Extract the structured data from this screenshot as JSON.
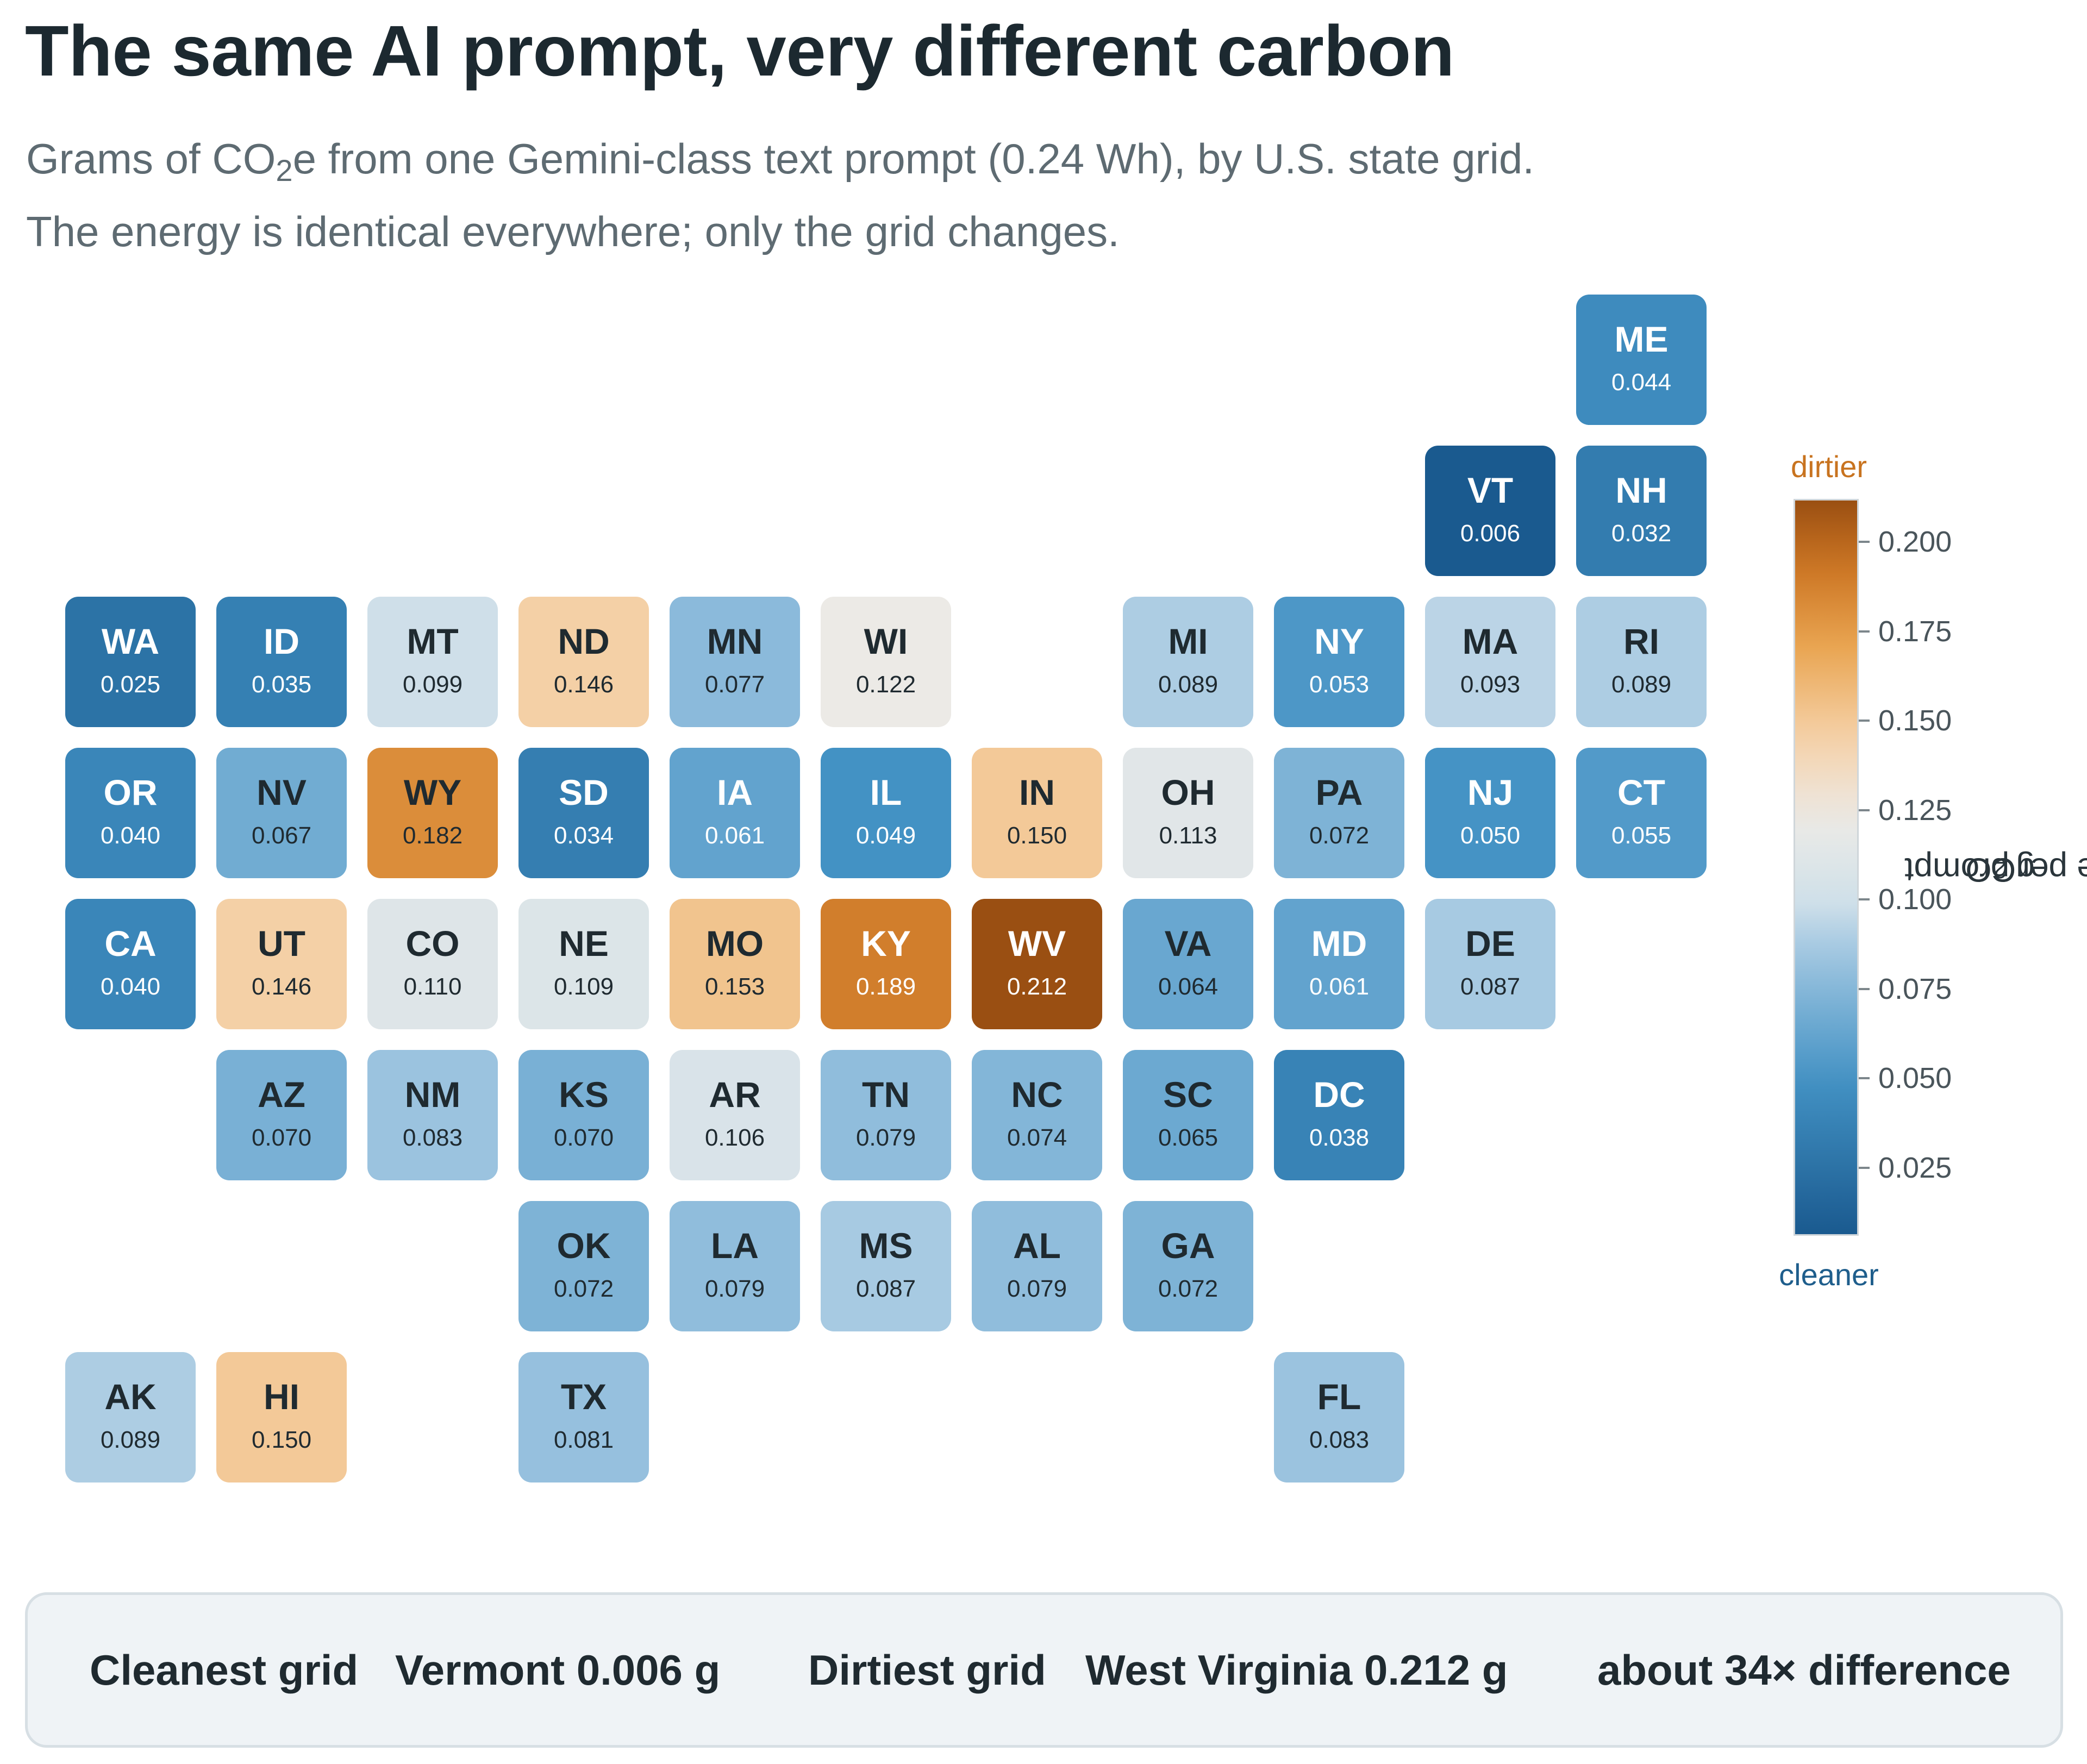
{
  "title": "The same AI prompt, very different carbon",
  "subtitle": {
    "line1_pre": "Grams of CO",
    "line1_sub": "2",
    "line1_post": "e from one Gemini-class text prompt (0.24 Wh), by U.S. state grid.",
    "line2": "The energy is identical everywhere; only the grid changes."
  },
  "legend": {
    "top_label": "dirtier",
    "bottom_label": "cleaner",
    "title_pre": "gCO",
    "title_sub": "2",
    "title_post": "e per prompt",
    "min": 0.006,
    "max": 0.212,
    "ticks": [
      "0.025",
      "0.050",
      "0.075",
      "0.100",
      "0.125",
      "0.150",
      "0.175",
      "0.200"
    ],
    "colors": {
      "dirtier_text": "#c8731f",
      "cleaner_text": "#1f5e8c",
      "low": "#1a5a8f",
      "mid": "#ecebe8",
      "high": "#9a4f12"
    }
  },
  "states": [
    {
      "abbr": "ME",
      "value": "0.044",
      "row": 0,
      "col": 10
    },
    {
      "abbr": "VT",
      "value": "0.006",
      "row": 1,
      "col": 9
    },
    {
      "abbr": "NH",
      "value": "0.032",
      "row": 1,
      "col": 10
    },
    {
      "abbr": "WA",
      "value": "0.025",
      "row": 2,
      "col": 0
    },
    {
      "abbr": "ID",
      "value": "0.035",
      "row": 2,
      "col": 1
    },
    {
      "abbr": "MT",
      "value": "0.099",
      "row": 2,
      "col": 2
    },
    {
      "abbr": "ND",
      "value": "0.146",
      "row": 2,
      "col": 3
    },
    {
      "abbr": "MN",
      "value": "0.077",
      "row": 2,
      "col": 4
    },
    {
      "abbr": "WI",
      "value": "0.122",
      "row": 2,
      "col": 5
    },
    {
      "abbr": "MI",
      "value": "0.089",
      "row": 2,
      "col": 7
    },
    {
      "abbr": "NY",
      "value": "0.053",
      "row": 2,
      "col": 8
    },
    {
      "abbr": "MA",
      "value": "0.093",
      "row": 2,
      "col": 9
    },
    {
      "abbr": "RI",
      "value": "0.089",
      "row": 2,
      "col": 10
    },
    {
      "abbr": "OR",
      "value": "0.040",
      "row": 3,
      "col": 0
    },
    {
      "abbr": "NV",
      "value": "0.067",
      "row": 3,
      "col": 1
    },
    {
      "abbr": "WY",
      "value": "0.182",
      "row": 3,
      "col": 2
    },
    {
      "abbr": "SD",
      "value": "0.034",
      "row": 3,
      "col": 3
    },
    {
      "abbr": "IA",
      "value": "0.061",
      "row": 3,
      "col": 4
    },
    {
      "abbr": "IL",
      "value": "0.049",
      "row": 3,
      "col": 5
    },
    {
      "abbr": "IN",
      "value": "0.150",
      "row": 3,
      "col": 6
    },
    {
      "abbr": "OH",
      "value": "0.113",
      "row": 3,
      "col": 7
    },
    {
      "abbr": "PA",
      "value": "0.072",
      "row": 3,
      "col": 8
    },
    {
      "abbr": "NJ",
      "value": "0.050",
      "row": 3,
      "col": 9
    },
    {
      "abbr": "CT",
      "value": "0.055",
      "row": 3,
      "col": 10
    },
    {
      "abbr": "CA",
      "value": "0.040",
      "row": 4,
      "col": 0
    },
    {
      "abbr": "UT",
      "value": "0.146",
      "row": 4,
      "col": 1
    },
    {
      "abbr": "CO",
      "value": "0.110",
      "row": 4,
      "col": 2
    },
    {
      "abbr": "NE",
      "value": "0.109",
      "row": 4,
      "col": 3
    },
    {
      "abbr": "MO",
      "value": "0.153",
      "row": 4,
      "col": 4
    },
    {
      "abbr": "KY",
      "value": "0.189",
      "row": 4,
      "col": 5
    },
    {
      "abbr": "WV",
      "value": "0.212",
      "row": 4,
      "col": 6
    },
    {
      "abbr": "VA",
      "value": "0.064",
      "row": 4,
      "col": 7
    },
    {
      "abbr": "MD",
      "value": "0.061",
      "row": 4,
      "col": 8
    },
    {
      "abbr": "DE",
      "value": "0.087",
      "row": 4,
      "col": 9
    },
    {
      "abbr": "AZ",
      "value": "0.070",
      "row": 5,
      "col": 1
    },
    {
      "abbr": "NM",
      "value": "0.083",
      "row": 5,
      "col": 2
    },
    {
      "abbr": "KS",
      "value": "0.070",
      "row": 5,
      "col": 3
    },
    {
      "abbr": "AR",
      "value": "0.106",
      "row": 5,
      "col": 4
    },
    {
      "abbr": "TN",
      "value": "0.079",
      "row": 5,
      "col": 5
    },
    {
      "abbr": "NC",
      "value": "0.074",
      "row": 5,
      "col": 6
    },
    {
      "abbr": "SC",
      "value": "0.065",
      "row": 5,
      "col": 7
    },
    {
      "abbr": "DC",
      "value": "0.038",
      "row": 5,
      "col": 8
    },
    {
      "abbr": "OK",
      "value": "0.072",
      "row": 6,
      "col": 3
    },
    {
      "abbr": "LA",
      "value": "0.079",
      "row": 6,
      "col": 4
    },
    {
      "abbr": "MS",
      "value": "0.087",
      "row": 6,
      "col": 5
    },
    {
      "abbr": "AL",
      "value": "0.079",
      "row": 6,
      "col": 6
    },
    {
      "abbr": "GA",
      "value": "0.072",
      "row": 6,
      "col": 7
    },
    {
      "abbr": "AK",
      "value": "0.089",
      "row": 7,
      "col": 0
    },
    {
      "abbr": "HI",
      "value": "0.150",
      "row": 7,
      "col": 1
    },
    {
      "abbr": "TX",
      "value": "0.081",
      "row": 7,
      "col": 3
    },
    {
      "abbr": "FL",
      "value": "0.083",
      "row": 7,
      "col": 8
    }
  ],
  "footer": {
    "cleanest_label": "Cleanest grid",
    "cleanest_value": "Vermont 0.006 g",
    "dirtiest_label": "Dirtiest grid",
    "dirtiest_value": "West Virginia 0.212 g",
    "difference": "about 34× difference"
  }
}
